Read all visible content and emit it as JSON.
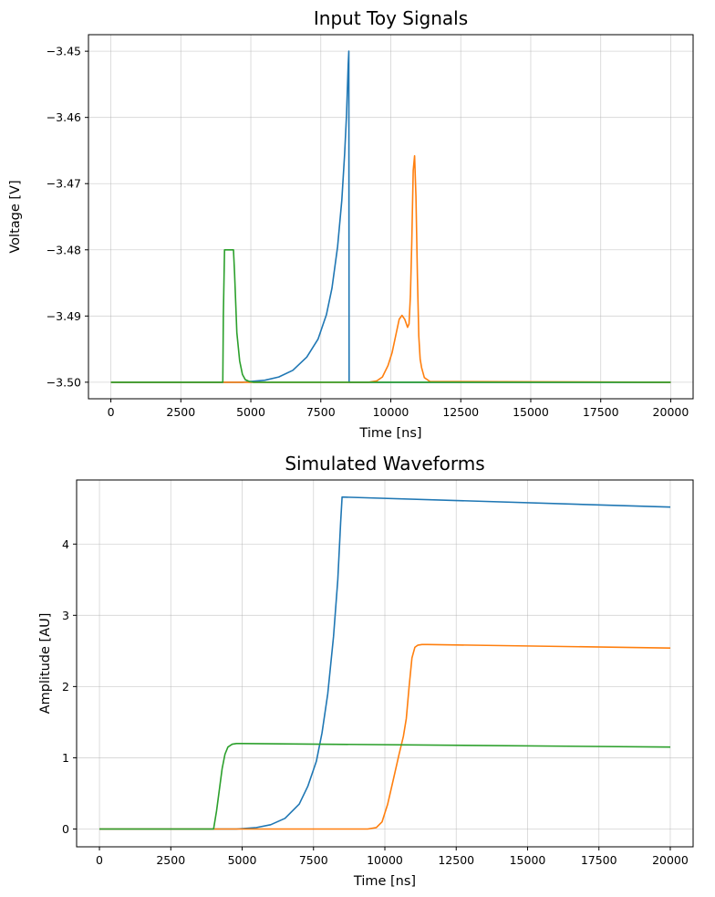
{
  "chart_data": [
    {
      "type": "line",
      "title": "Input Toy Signals",
      "xlabel": "Time [ns]",
      "ylabel": "Voltage [V]",
      "xlim": [
        -800,
        20800
      ],
      "ylim": [
        -3.5025,
        -3.4475
      ],
      "xticks": [
        0,
        2500,
        5000,
        7500,
        10000,
        12500,
        15000,
        17500,
        20000
      ],
      "xtick_labels": [
        "0",
        "2500",
        "5000",
        "7500",
        "10000",
        "12500",
        "15000",
        "17500",
        "20000"
      ],
      "yticks": [
        -3.5,
        -3.49,
        -3.48,
        -3.47,
        -3.46,
        -3.45
      ],
      "ytick_labels": [
        "−3.50",
        "−3.49",
        "−3.48",
        "−3.47",
        "−3.46",
        "−3.45"
      ],
      "grid": true,
      "series": [
        {
          "color": "#1f77b4",
          "x": [
            0,
            4700,
            5000,
            5500,
            6000,
            6500,
            7000,
            7400,
            7700,
            7900,
            8100,
            8250,
            8350,
            8420,
            8480,
            8500,
            8510,
            20000
          ],
          "y": [
            -3.5,
            -3.5,
            -3.4999,
            -3.4997,
            -3.4992,
            -3.4982,
            -3.4962,
            -3.4935,
            -3.4898,
            -3.4858,
            -3.4795,
            -3.4725,
            -3.4655,
            -3.4595,
            -3.452,
            -3.45,
            -3.5,
            -3.5
          ]
        },
        {
          "color": "#ff7f0e",
          "x": [
            0,
            9200,
            9500,
            9700,
            9900,
            10050,
            10200,
            10300,
            10400,
            10500,
            10600,
            10650,
            10700,
            10750,
            10800,
            10850,
            10900,
            10950,
            11000,
            11050,
            11100,
            11200,
            11400,
            20000
          ],
          "y": [
            -3.5,
            -3.5,
            -3.4998,
            -3.4992,
            -3.4975,
            -3.4955,
            -3.4925,
            -3.4905,
            -3.4899,
            -3.4905,
            -3.4917,
            -3.4912,
            -3.487,
            -3.479,
            -3.468,
            -3.4658,
            -3.472,
            -3.484,
            -3.493,
            -3.4965,
            -3.4978,
            -3.4993,
            -3.4999,
            -3.5
          ]
        },
        {
          "color": "#2ca02c",
          "x": [
            0,
            4000,
            4020,
            4060,
            4380,
            4420,
            4500,
            4600,
            4700,
            4800,
            4950,
            5100,
            20000
          ],
          "y": [
            -3.5,
            -3.5,
            -3.49,
            -3.48,
            -3.48,
            -3.4835,
            -3.4925,
            -3.4968,
            -3.4988,
            -3.4996,
            -3.4999,
            -3.5,
            -3.5
          ]
        }
      ]
    },
    {
      "type": "line",
      "title": "Simulated Waveforms",
      "xlabel": "Time [ns]",
      "ylabel": "Amplitude [AU]",
      "xlim": [
        -800,
        20800
      ],
      "ylim": [
        -0.25,
        4.9
      ],
      "xticks": [
        0,
        2500,
        5000,
        7500,
        10000,
        12500,
        15000,
        17500,
        20000
      ],
      "xtick_labels": [
        "0",
        "2500",
        "5000",
        "7500",
        "10000",
        "12500",
        "15000",
        "17500",
        "20000"
      ],
      "yticks": [
        0,
        1,
        2,
        3,
        4
      ],
      "ytick_labels": [
        "0",
        "1",
        "2",
        "3",
        "4"
      ],
      "grid": true,
      "series": [
        {
          "color": "#1f77b4",
          "x": [
            0,
            4800,
            5500,
            6000,
            6500,
            7000,
            7300,
            7600,
            7800,
            8000,
            8200,
            8350,
            8450,
            8500,
            20000
          ],
          "y": [
            0,
            0,
            0.02,
            0.06,
            0.15,
            0.35,
            0.6,
            0.95,
            1.35,
            1.9,
            2.7,
            3.5,
            4.3,
            4.66,
            4.52
          ]
        },
        {
          "color": "#ff7f0e",
          "x": [
            0,
            9400,
            9700,
            9900,
            10100,
            10300,
            10500,
            10650,
            10750,
            10850,
            10950,
            11050,
            11150,
            11300,
            11500,
            20000
          ],
          "y": [
            0,
            0,
            0.02,
            0.1,
            0.35,
            0.7,
            1.05,
            1.3,
            1.55,
            2.0,
            2.4,
            2.55,
            2.58,
            2.59,
            2.59,
            2.54
          ]
        },
        {
          "color": "#2ca02c",
          "x": [
            0,
            4000,
            4100,
            4200,
            4300,
            4400,
            4500,
            4650,
            4800,
            5000,
            20000
          ],
          "y": [
            0,
            0,
            0.25,
            0.55,
            0.85,
            1.05,
            1.15,
            1.19,
            1.2,
            1.2,
            1.15
          ]
        }
      ]
    }
  ]
}
